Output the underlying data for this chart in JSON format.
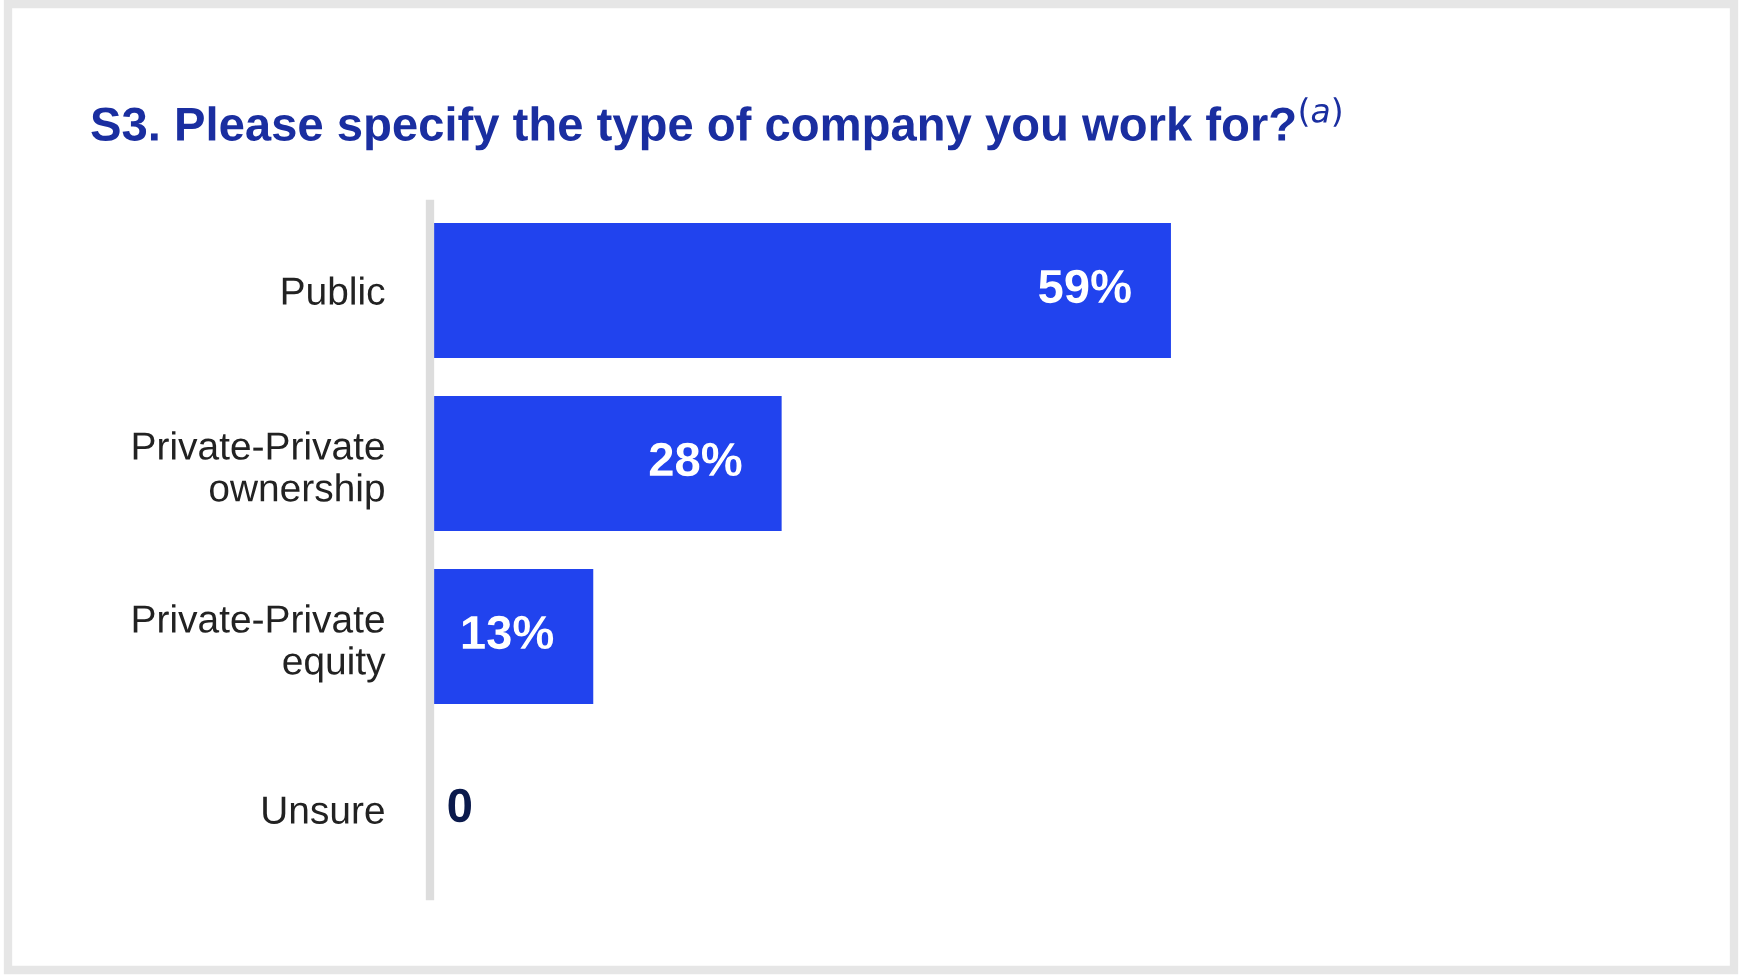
{
  "chart_data": {
    "type": "bar",
    "orientation": "horizontal",
    "title": "S3. Please specify the type of company you work for?$^{(a)}$",
    "categories": [
      "Public",
      "Private-Private\nownership",
      "Private-Private\nequity",
      "Unsure"
    ],
    "values": [
      59,
      28,
      13,
      0
    ],
    "color": "#2143ee",
    "value_labels": [
      "59%",
      "28%",
      "13%",
      "0"
    ],
    "grid": false
  }
}
